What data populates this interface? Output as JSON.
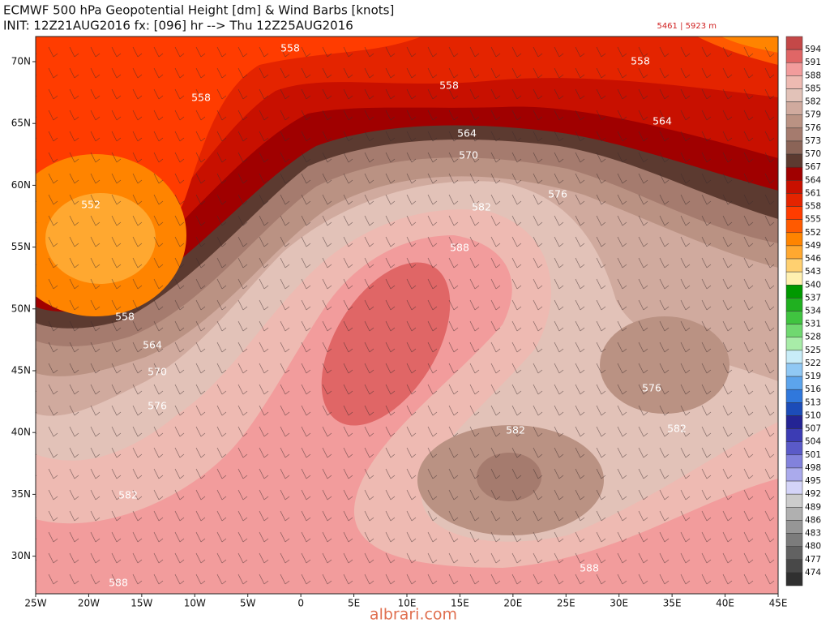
{
  "header": {
    "title": "ECMWF 500 hPa Geopotential Height [dm] & Wind Barbs [knots]",
    "subtitle": "INIT: 12Z21AUG2016 fx: [096] hr --> Thu 12Z25AUG2016",
    "range": "5461 | 5923 m"
  },
  "axes": {
    "lon": [
      "25W",
      "20W",
      "15W",
      "10W",
      "5W",
      "0",
      "5E",
      "10E",
      "15E",
      "20E",
      "25E",
      "30E",
      "35E",
      "40E",
      "45E"
    ],
    "lat": [
      "70N",
      "65N",
      "60N",
      "55N",
      "50N",
      "45N",
      "40N",
      "35N",
      "30N"
    ]
  },
  "colorbar": {
    "labels": [
      594,
      591,
      588,
      585,
      582,
      579,
      576,
      573,
      570,
      567,
      564,
      561,
      558,
      555,
      552,
      549,
      546,
      543,
      540,
      537,
      534,
      531,
      528,
      525,
      522,
      519,
      516,
      513,
      510,
      507,
      504,
      501,
      498,
      495,
      492,
      489,
      486,
      483,
      480,
      477,
      474
    ],
    "colors": [
      "#c44848",
      "#e06666",
      "#f29c9c",
      "#eebab2",
      "#e2c2b8",
      "#d0aa9e",
      "#ba9283",
      "#a57b6e",
      "#8b6457",
      "#5c3a30",
      "#a00000",
      "#c81000",
      "#e42400",
      "#ff3c00",
      "#ff5a00",
      "#ff8400",
      "#ffa830",
      "#ffd070",
      "#fff0b0",
      "#009900",
      "#20b020",
      "#40c440",
      "#70d870",
      "#a8eca8",
      "#c8ecf8",
      "#90c8f4",
      "#5ca4ec",
      "#3078dc",
      "#1c4cb8",
      "#242494",
      "#3c3cb4",
      "#5a5ac8",
      "#8282dc",
      "#aaaaec",
      "#d4d4f8",
      "#cccccc",
      "#b0b0b0",
      "#969696",
      "#7c7c7c",
      "#626262",
      "#484848",
      "#303030"
    ]
  },
  "contour_labels": [
    "558",
    "558",
    "558",
    "558",
    "564",
    "564",
    "570",
    "576",
    "582",
    "588",
    "552",
    "558",
    "564",
    "570",
    "576",
    "576",
    "582",
    "582",
    "582",
    "588",
    "588"
  ],
  "watermark": "albrari.com"
}
